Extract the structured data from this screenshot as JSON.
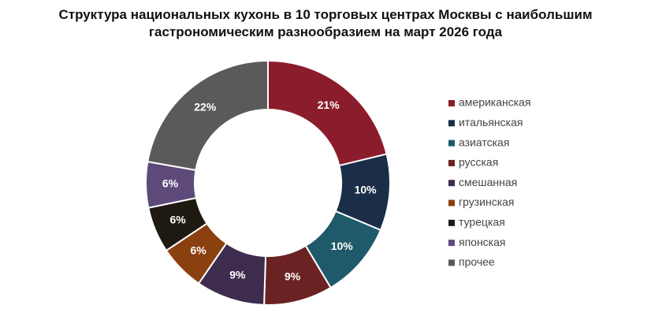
{
  "chart_data": {
    "type": "donut",
    "title": "Структура национальных кухонь в 10 торговых центрах Москвы с наибольшим гастрономическим разнообразием на март 2026 года",
    "categories": [
      "американская",
      "итальянская",
      "азиатская",
      "русская",
      "смешанная",
      "грузинская",
      "турецкая",
      "японская",
      "прочее"
    ],
    "values": [
      21,
      10,
      10,
      9,
      9,
      6,
      6,
      6,
      22
    ],
    "value_labels": [
      "21%",
      "10%",
      "10%",
      "9%",
      "9%",
      "6%",
      "6%",
      "6%",
      "22%"
    ],
    "colors": [
      "#8b1c2b",
      "#1a2e48",
      "#1f5a6a",
      "#6b2222",
      "#3e2c4e",
      "#8b4010",
      "#1e1a12",
      "#5e4a7a",
      "#5a5a5a"
    ],
    "legend": "right"
  }
}
